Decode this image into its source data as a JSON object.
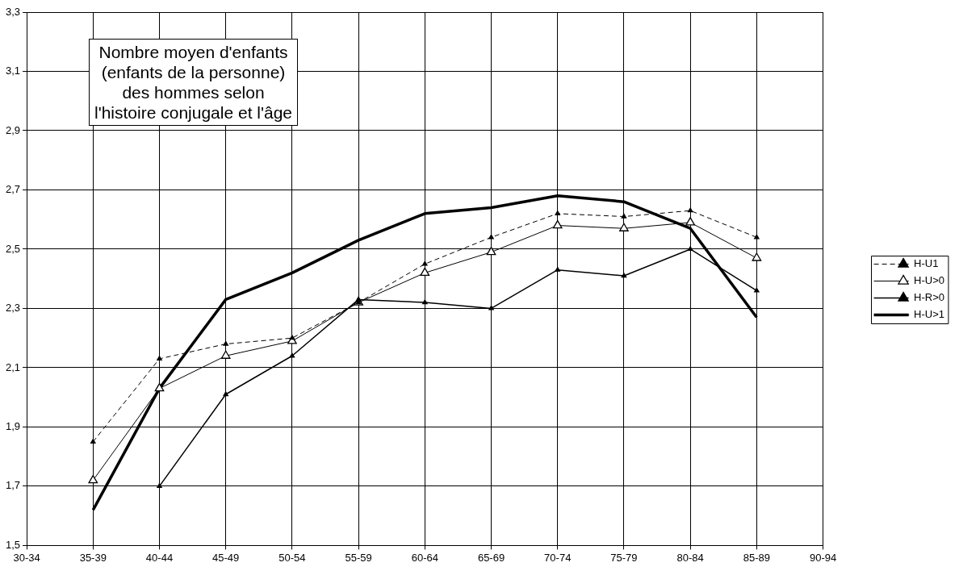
{
  "chart_data": {
    "type": "line",
    "title": "Nombre moyen d'enfants\n(enfants de la personne)\ndes hommes selon\nl'histoire conjugale et l'âge",
    "categories": [
      "30-34",
      "35-39",
      "40-44",
      "45-49",
      "50-54",
      "55-59",
      "60-64",
      "65-69",
      "70-74",
      "75-79",
      "80-84",
      "85-89",
      "90-94"
    ],
    "series": [
      {
        "name": "H-U1",
        "color": "#000000",
        "line_style": "dashed",
        "marker": "triangle",
        "values": [
          null,
          1.85,
          2.13,
          2.18,
          2.2,
          2.32,
          2.45,
          2.54,
          2.62,
          2.61,
          2.63,
          2.54,
          null
        ]
      },
      {
        "name": "H-U>0",
        "color": "#000000",
        "line_style": "solid",
        "marker": "triangle",
        "values": [
          null,
          1.72,
          2.03,
          2.14,
          2.19,
          2.32,
          2.42,
          2.49,
          2.58,
          2.57,
          2.59,
          2.47,
          null
        ]
      },
      {
        "name": "H-R>0",
        "color": "#000000",
        "line_style": "solid",
        "marker": "triangle",
        "values": [
          null,
          null,
          1.7,
          2.01,
          2.14,
          2.33,
          2.32,
          2.3,
          2.43,
          2.41,
          2.5,
          2.36,
          null
        ]
      },
      {
        "name": "H-U>1",
        "color": "#000000",
        "line_style": "solid",
        "marker": "none",
        "values": [
          null,
          1.62,
          2.03,
          2.33,
          2.42,
          2.53,
          2.62,
          2.64,
          2.68,
          2.66,
          2.57,
          2.27,
          null
        ]
      }
    ],
    "ylim": [
      1.5,
      3.3
    ],
    "yticks": [
      {
        "value": 1.5,
        "label": "1,5"
      },
      {
        "value": 1.7,
        "label": "1,7"
      },
      {
        "value": 1.9,
        "label": "1,9"
      },
      {
        "value": 2.1,
        "label": "2,1"
      },
      {
        "value": 2.3,
        "label": "2,3"
      },
      {
        "value": 2.5,
        "label": "2,5"
      },
      {
        "value": 2.7,
        "label": "2,7"
      },
      {
        "value": 2.9,
        "label": "2,9"
      },
      {
        "value": 3.1,
        "label": "3,1"
      },
      {
        "value": 3.3,
        "label": "3,3"
      }
    ],
    "grid": true,
    "legend": "right"
  }
}
